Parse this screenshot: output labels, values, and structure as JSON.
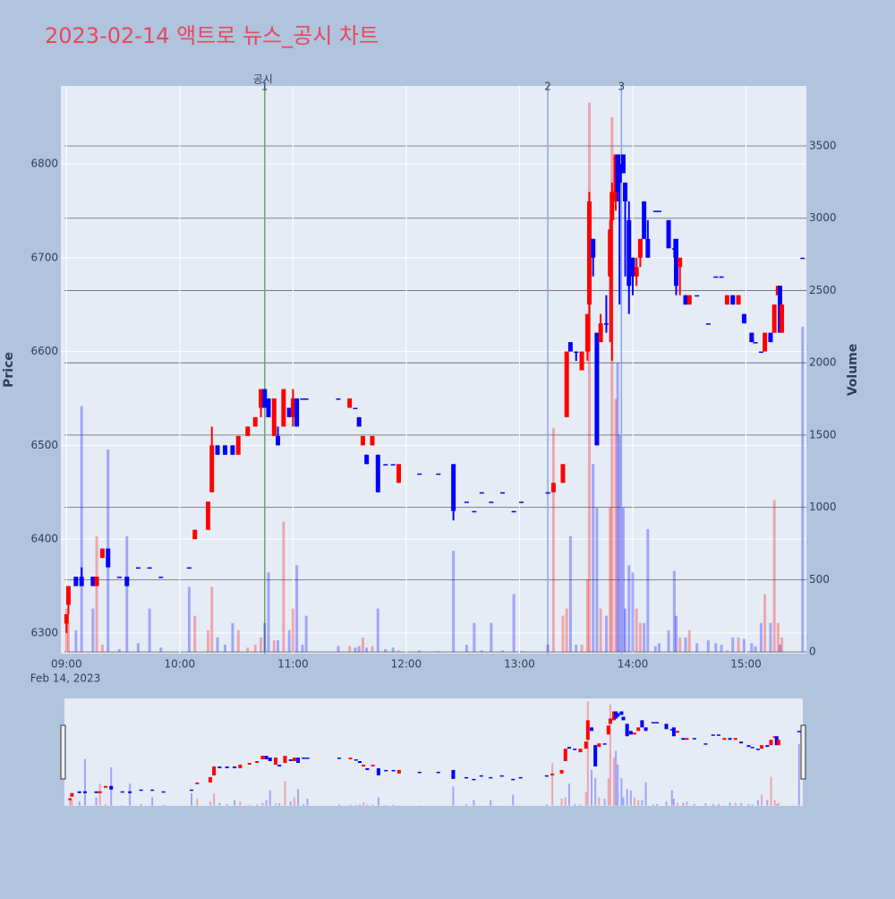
{
  "chart_data": {
    "type": "candlestick",
    "title": "2023-02-14 액트로 뉴스_공시 차트",
    "y_label": "Price",
    "y2_label": "Volume",
    "x_date_label": "Feb 14, 2023",
    "increasing_color": "#ff0000",
    "decreasing_color": "#0000ff",
    "xlim": [
      "08:57",
      "15:32"
    ],
    "xticks": [
      "09:00",
      "10:00",
      "11:00",
      "12:00",
      "13:00",
      "14:00",
      "15:00"
    ],
    "ylim": [
      6278,
      6883
    ],
    "yticks": [
      6300,
      6400,
      6500,
      6600,
      6700,
      6800
    ],
    "y2lim": [
      -12,
      3915
    ],
    "y2ticks": [
      0,
      500,
      1000,
      1500,
      2000,
      2500,
      3000,
      3500
    ],
    "events": [
      {
        "x": "10:45",
        "label": "1",
        "name": "공시",
        "color": "#6aa86a"
      },
      {
        "x": "13:15",
        "label": "2",
        "color": "#8fa3e8"
      },
      {
        "x": "13:54",
        "label": "3",
        "color": "#8fa3e8"
      }
    ],
    "x": [
      "09:00",
      "09:01",
      "09:05",
      "09:08",
      "09:14",
      "09:16",
      "09:19",
      "09:22",
      "09:28",
      "09:32",
      "09:38",
      "09:44",
      "09:50",
      "10:05",
      "10:08",
      "10:15",
      "10:17",
      "10:20",
      "10:24",
      "10:28",
      "10:31",
      "10:36",
      "10:40",
      "10:43",
      "10:45",
      "10:47",
      "10:50",
      "10:52",
      "10:55",
      "10:58",
      "11:00",
      "11:02",
      "11:05",
      "11:07",
      "11:24",
      "11:30",
      "11:33",
      "11:35",
      "11:37",
      "11:39",
      "11:42",
      "11:45",
      "11:49",
      "11:53",
      "11:56",
      "12:07",
      "12:17",
      "12:25",
      "12:32",
      "12:36",
      "12:40",
      "12:45",
      "12:51",
      "12:57",
      "13:01",
      "13:15",
      "13:18",
      "13:23",
      "13:25",
      "13:27",
      "13:30",
      "13:33",
      "13:36",
      "13:37",
      "13:39",
      "13:41",
      "13:43",
      "13:46",
      "13:48",
      "13:49",
      "13:51",
      "13:52",
      "13:53",
      "13:55",
      "13:56",
      "13:58",
      "14:00",
      "14:02",
      "14:04",
      "14:06",
      "14:08",
      "14:12",
      "14:14",
      "14:19",
      "14:22",
      "14:23",
      "14:25",
      "14:28",
      "14:30",
      "14:34",
      "14:40",
      "14:44",
      "14:47",
      "14:50",
      "14:53",
      "14:56",
      "14:59",
      "15:03",
      "15:05",
      "15:08",
      "15:10",
      "15:13",
      "15:15",
      "15:17",
      "15:18",
      "15:19",
      "15:30"
    ],
    "open": [
      6310,
      6330,
      6360,
      6360,
      6360,
      6350,
      6380,
      6390,
      6360,
      6360,
      6370,
      6370,
      6360,
      6370,
      6400,
      6410,
      6450,
      6500,
      6500,
      6500,
      6490,
      6510,
      6520,
      6540,
      6560,
      6550,
      6510,
      6510,
      6520,
      6540,
      6530,
      6550,
      6550,
      6550,
      6550,
      6540,
      6540,
      6530,
      6500,
      6490,
      6500,
      6490,
      6480,
      6480,
      6460,
      6470,
      6470,
      6480,
      6440,
      6430,
      6450,
      6440,
      6450,
      6430,
      6440,
      6450,
      6450,
      6460,
      6530,
      6610,
      6600,
      6580,
      6600,
      6650,
      6720,
      6620,
      6610,
      6630,
      6680,
      6740,
      6760,
      6810,
      6800,
      6810,
      6780,
      6740,
      6700,
      6680,
      6700,
      6760,
      6720,
      6750,
      6750,
      6740,
      6710,
      6720,
      6690,
      6660,
      6650,
      6660,
      6630,
      6680,
      6680,
      6650,
      6660,
      6650,
      6640,
      6620,
      6610,
      6600,
      6600,
      6620,
      6620,
      6660,
      6670,
      6620,
      6700
    ],
    "high": [
      6320,
      6350,
      6360,
      6370,
      6360,
      6360,
      6390,
      6390,
      6360,
      6360,
      6370,
      6370,
      6360,
      6370,
      6410,
      6440,
      6520,
      6500,
      6500,
      6500,
      6510,
      6520,
      6530,
      6560,
      6560,
      6550,
      6550,
      6520,
      6560,
      6540,
      6560,
      6550,
      6550,
      6550,
      6550,
      6550,
      6540,
      6530,
      6510,
      6490,
      6510,
      6490,
      6480,
      6480,
      6480,
      6470,
      6470,
      6480,
      6440,
      6430,
      6450,
      6440,
      6450,
      6430,
      6440,
      6450,
      6460,
      6480,
      6600,
      6610,
      6600,
      6600,
      6640,
      6770,
      6720,
      6620,
      6640,
      6660,
      6740,
      6780,
      6810,
      6810,
      6810,
      6810,
      6780,
      6760,
      6700,
      6700,
      6720,
      6760,
      6740,
      6750,
      6750,
      6740,
      6720,
      6720,
      6700,
      6660,
      6660,
      6660,
      6630,
      6680,
      6680,
      6660,
      6660,
      6660,
      6640,
      6620,
      6610,
      6600,
      6620,
      6620,
      6650,
      6670,
      6670,
      6650,
      6700
    ],
    "low": [
      6300,
      6320,
      6350,
      6350,
      6350,
      6350,
      6380,
      6370,
      6360,
      6350,
      6370,
      6370,
      6360,
      6370,
      6400,
      6410,
      6450,
      6490,
      6490,
      6490,
      6490,
      6510,
      6520,
      6530,
      6540,
      6530,
      6510,
      6500,
      6520,
      6530,
      6520,
      6520,
      6550,
      6550,
      6550,
      6540,
      6540,
      6520,
      6500,
      6480,
      6500,
      6450,
      6480,
      6480,
      6460,
      6470,
      6470,
      6420,
      6440,
      6430,
      6450,
      6440,
      6450,
      6430,
      6440,
      6450,
      6450,
      6460,
      6530,
      6600,
      6590,
      6580,
      6590,
      6600,
      6680,
      6500,
      6610,
      6620,
      6610,
      6590,
      6750,
      6760,
      6650,
      6790,
      6680,
      6640,
      6660,
      6670,
      6690,
      6720,
      6700,
      6750,
      6750,
      6710,
      6700,
      6660,
      6660,
      6650,
      6650,
      6660,
      6630,
      6680,
      6680,
      6650,
      6650,
      6650,
      6630,
      6610,
      6610,
      6600,
      6600,
      6610,
      6620,
      6660,
      6620,
      6620,
      6700
    ],
    "close": [
      6320,
      6350,
      6350,
      6350,
      6350,
      6360,
      6390,
      6370,
      6360,
      6350,
      6370,
      6370,
      6360,
      6370,
      6410,
      6440,
      6500,
      6490,
      6490,
      6490,
      6510,
      6520,
      6530,
      6560,
      6540,
      6530,
      6550,
      6500,
      6560,
      6530,
      6550,
      6520,
      6550,
      6550,
      6550,
      6550,
      6540,
      6520,
      6510,
      6480,
      6510,
      6450,
      6480,
      6480,
      6480,
      6470,
      6470,
      6430,
      6440,
      6430,
      6450,
      6440,
      6450,
      6430,
      6440,
      6450,
      6460,
      6480,
      6600,
      6600,
      6600,
      6600,
      6640,
      6760,
      6700,
      6500,
      6630,
      6630,
      6730,
      6770,
      6810,
      6770,
      6780,
      6790,
      6760,
      6670,
      6680,
      6690,
      6720,
      6720,
      6700,
      6750,
      6750,
      6710,
      6710,
      6670,
      6700,
      6650,
      6660,
      6660,
      6630,
      6680,
      6680,
      6660,
      6650,
      6660,
      6630,
      6610,
      6610,
      6600,
      6620,
      6610,
      6650,
      6670,
      6620,
      6650,
      6700
    ],
    "volume": [
      300,
      200,
      150,
      1700,
      300,
      800,
      50,
      1400,
      20,
      800,
      60,
      300,
      30,
      450,
      250,
      150,
      450,
      100,
      50,
      200,
      150,
      30,
      50,
      100,
      200,
      550,
      80,
      80,
      900,
      150,
      300,
      600,
      50,
      250,
      40,
      40,
      30,
      40,
      100,
      30,
      40,
      300,
      20,
      30,
      10,
      10,
      5,
      700,
      50,
      200,
      10,
      200,
      10,
      400,
      5,
      50,
      1550,
      250,
      300,
      800,
      50,
      50,
      500,
      3800,
      1300,
      1000,
      300,
      250,
      1000,
      3700,
      1750,
      2000,
      1500,
      1000,
      300,
      600,
      550,
      300,
      200,
      200,
      850,
      40,
      60,
      150,
      560,
      250,
      100,
      100,
      150,
      60,
      80,
      60,
      50,
      10,
      100,
      100,
      90,
      60,
      40,
      200,
      400,
      200,
      1050,
      200,
      50,
      100,
      2250
    ]
  }
}
